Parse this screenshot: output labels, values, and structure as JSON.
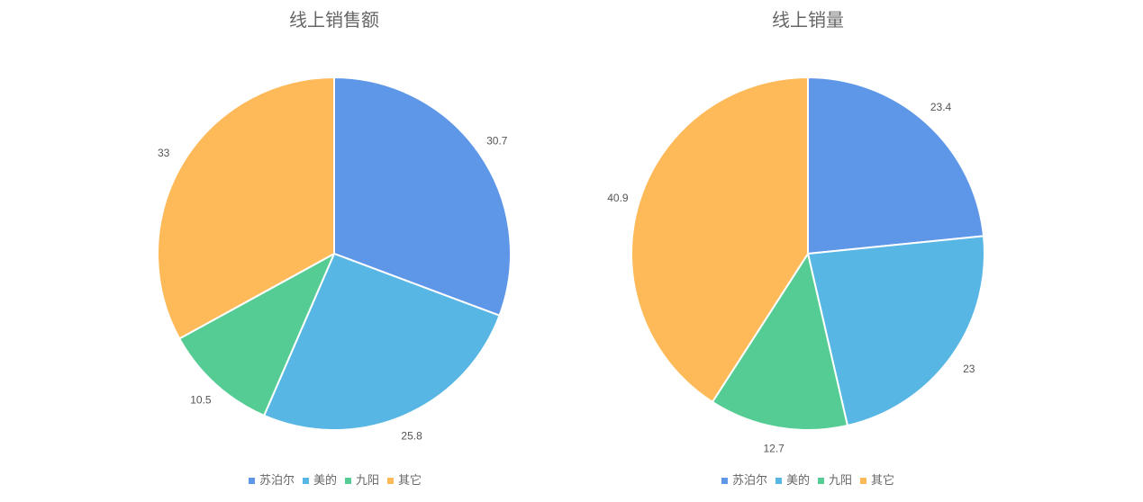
{
  "chart_data": [
    {
      "type": "pie",
      "title": "线上销售额",
      "categories": [
        "苏泊尔",
        "美的",
        "九阳",
        "其它"
      ],
      "values": [
        30.7,
        25.8,
        10.5,
        33
      ],
      "colors": [
        "#5f97e8",
        "#58b6e4",
        "#56cc95",
        "#feb958"
      ],
      "legend_position": "bottom"
    },
    {
      "type": "pie",
      "title": "线上销量",
      "categories": [
        "苏泊尔",
        "美的",
        "九阳",
        "其它"
      ],
      "values": [
        23.4,
        23,
        12.7,
        40.9
      ],
      "colors": [
        "#5f97e8",
        "#58b6e4",
        "#56cc95",
        "#feb958"
      ],
      "legend_position": "bottom"
    }
  ]
}
